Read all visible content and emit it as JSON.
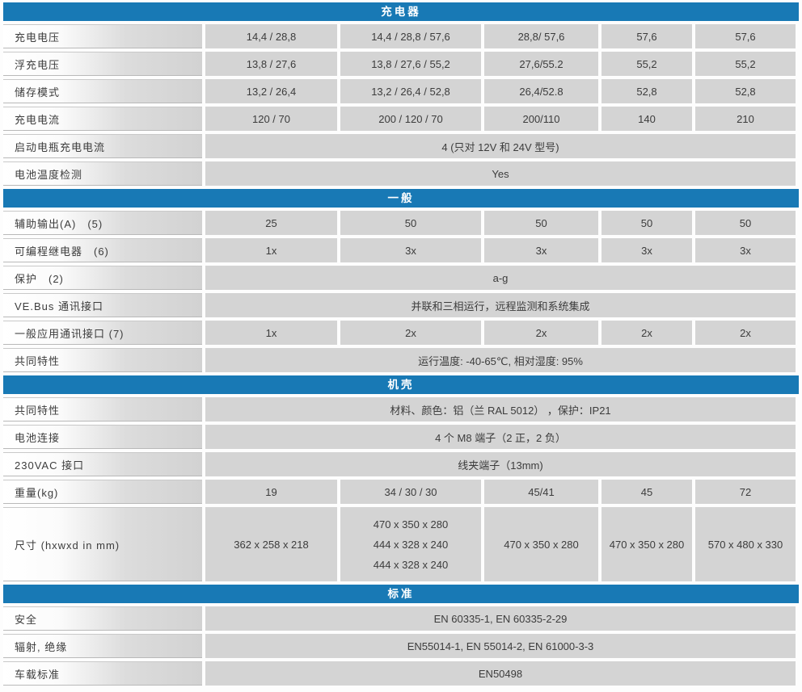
{
  "table": {
    "accent_color": "#1879b5",
    "cell_color": "#d4d4d4",
    "text_color": "#3c3c3c",
    "sections": [
      {
        "title": "充电器",
        "rows": [
          {
            "label": "充电电压",
            "values": [
              "14,4 / 28,8",
              "14,4 / 28,8 / 57,6",
              "28,8/ 57,6",
              "57,6",
              "57,6"
            ]
          },
          {
            "label": "浮充电压",
            "values": [
              "13,8 / 27,6",
              "13,8 / 27,6 / 55,2",
              "27,6/55.2",
              "55,2",
              "55,2"
            ]
          },
          {
            "label": "储存模式",
            "values": [
              "13,2 / 26,4",
              "13,2 / 26,4 / 52,8",
              "26,4/52.8",
              "52,8",
              "52,8"
            ]
          },
          {
            "label": "充电电流",
            "values": [
              "120 / 70",
              "200 / 120 / 70",
              "200/110",
              "140",
              "210"
            ]
          },
          {
            "label": "启动电瓶充电电流",
            "span": "4 (只对 12V 和 24V 型号)"
          },
          {
            "label": "电池温度检测",
            "span": "Yes"
          }
        ]
      },
      {
        "title": "一般",
        "rows": [
          {
            "label": "辅助输出(A)　(5)",
            "values": [
              "25",
              "50",
              "50",
              "50",
              "50"
            ]
          },
          {
            "label": "可编程继电器　(6)",
            "values": [
              "1x",
              "3x",
              "3x",
              "3x",
              "3x"
            ]
          },
          {
            "label": "保护　(2)",
            "span": "a-g"
          },
          {
            "label": "VE.Bus 通讯接口",
            "span": "并联和三相运行，远程监测和系统集成"
          },
          {
            "label": "一般应用通讯接口 (7)",
            "values": [
              "1x",
              "2x",
              "2x",
              "2x",
              "2x"
            ]
          },
          {
            "label": "共同特性",
            "span": "运行温度: -40-65℃, 相对湿度: 95%"
          }
        ]
      },
      {
        "title": "机壳",
        "rows": [
          {
            "label": "共同特性",
            "span": "材料、颜色：铝（兰 RAL 5012） ，保护：IP21"
          },
          {
            "label": "电池连接",
            "span": "4 个 M8 端子（2 正，2 负）"
          },
          {
            "label": "230VAC 接口",
            "span": "线夹端子（13mm)"
          },
          {
            "label": "重量(kg)",
            "values": [
              "19",
              "34 / 30 / 30",
              "45/41",
              "45",
              "72"
            ]
          },
          {
            "label": "尺寸 (hxwxd in mm)",
            "values": [
              "362 x 258 x 218",
              [
                "470 x 350 x 280",
                "444 x 328 x 240",
                "444 x 328 x 240"
              ],
              "470 x 350 x 280",
              "470 x 350 x 280",
              "570 x 480 x 330"
            ]
          }
        ]
      },
      {
        "title": "标准",
        "rows": [
          {
            "label": "安全",
            "span": "EN 60335-1, EN 60335-2-29"
          },
          {
            "label": "辐射, 绝缘",
            "span": "EN55014-1, EN 55014-2, EN 61000-3-3"
          },
          {
            "label": "车载标准",
            "span": "EN50498"
          }
        ]
      }
    ]
  }
}
